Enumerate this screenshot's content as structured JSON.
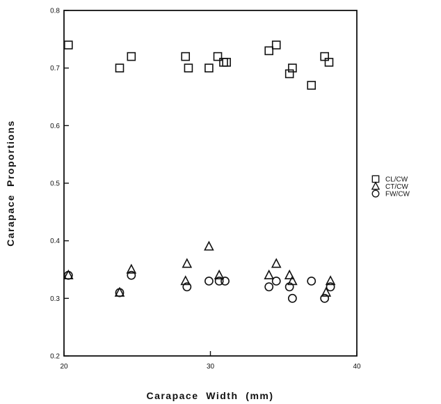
{
  "chart_data": {
    "type": "scatter",
    "xlabel": "Carapace  Width  (mm)",
    "ylabel": "Carapace  Proportions",
    "xlim": [
      20,
      40
    ],
    "ylim": [
      0.2,
      0.8
    ],
    "xticks": [
      20,
      30,
      40
    ],
    "xtick_labels": [
      "20",
      "30",
      "40"
    ],
    "yticks": [
      0.2,
      0.3,
      0.4,
      0.5,
      0.6,
      0.7,
      0.8
    ],
    "ytick_labels": [
      "0.2",
      "0.3",
      "0.4",
      "0.5",
      "0.6",
      "0.7",
      "0.8"
    ],
    "grid": false,
    "legend_position": "right",
    "series": [
      {
        "name": "CL/CW",
        "marker": "square",
        "points": [
          [
            20.3,
            0.74
          ],
          [
            23.8,
            0.7
          ],
          [
            24.6,
            0.72
          ],
          [
            28.3,
            0.72
          ],
          [
            28.5,
            0.7
          ],
          [
            29.9,
            0.7
          ],
          [
            30.5,
            0.72
          ],
          [
            30.9,
            0.71
          ],
          [
            31.1,
            0.71
          ],
          [
            34.0,
            0.73
          ],
          [
            34.5,
            0.74
          ],
          [
            35.4,
            0.69
          ],
          [
            35.6,
            0.7
          ],
          [
            36.9,
            0.67
          ],
          [
            37.8,
            0.72
          ],
          [
            38.1,
            0.71
          ]
        ]
      },
      {
        "name": "CT/CW",
        "marker": "triangle",
        "points": [
          [
            20.3,
            0.34
          ],
          [
            23.8,
            0.31
          ],
          [
            24.6,
            0.35
          ],
          [
            28.4,
            0.36
          ],
          [
            28.3,
            0.33
          ],
          [
            29.9,
            0.39
          ],
          [
            30.6,
            0.34
          ],
          [
            34.0,
            0.34
          ],
          [
            34.5,
            0.36
          ],
          [
            35.4,
            0.34
          ],
          [
            35.6,
            0.33
          ],
          [
            37.9,
            0.31
          ],
          [
            38.2,
            0.33
          ]
        ]
      },
      {
        "name": "FW/CW",
        "marker": "circle",
        "points": [
          [
            20.3,
            0.34
          ],
          [
            23.8,
            0.31
          ],
          [
            24.6,
            0.34
          ],
          [
            28.4,
            0.32
          ],
          [
            29.9,
            0.33
          ],
          [
            30.6,
            0.33
          ],
          [
            31.0,
            0.33
          ],
          [
            34.0,
            0.32
          ],
          [
            34.5,
            0.33
          ],
          [
            35.4,
            0.32
          ],
          [
            35.6,
            0.3
          ],
          [
            36.9,
            0.33
          ],
          [
            37.8,
            0.3
          ],
          [
            38.2,
            0.32
          ]
        ]
      }
    ]
  }
}
